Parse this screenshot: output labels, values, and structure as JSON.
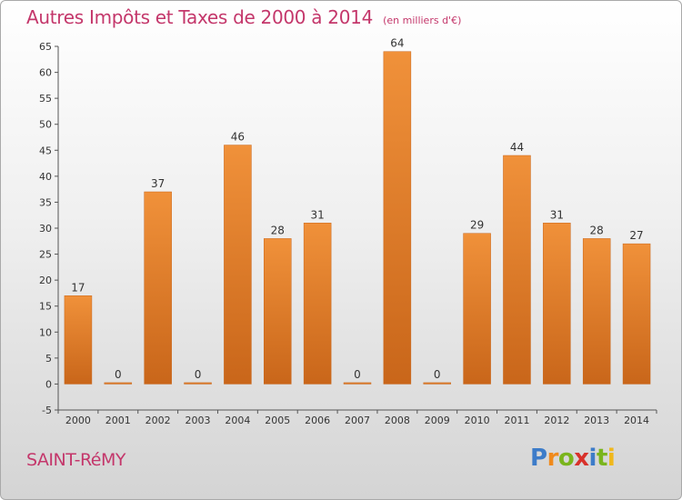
{
  "chart_data": {
    "type": "bar",
    "title": "Autres Impôts et Taxes de 2000 à 2014",
    "subtitle": "(en milliers d'€)",
    "categories": [
      "2000",
      "2001",
      "2002",
      "2003",
      "2004",
      "2005",
      "2006",
      "2007",
      "2008",
      "2009",
      "2010",
      "2011",
      "2012",
      "2013",
      "2014"
    ],
    "values": [
      17,
      0,
      37,
      0,
      46,
      28,
      31,
      0,
      64,
      0,
      29,
      44,
      31,
      28,
      27
    ],
    "ylim": [
      -5,
      65
    ],
    "yticks": [
      -5,
      0,
      5,
      10,
      15,
      20,
      25,
      30,
      35,
      40,
      45,
      50,
      55,
      60,
      65
    ],
    "grid": false,
    "bar_color": "#f0913a",
    "bar_color_dark": "#c9661a"
  },
  "place": "SAINT-RéMY",
  "logo": {
    "letters": [
      "P",
      "r",
      "o",
      "x",
      "i",
      "t",
      "i"
    ],
    "colors": [
      "#3d7cc9",
      "#f08a1c",
      "#7ab51d",
      "#d8312a",
      "#3d7cc9",
      "#7ab51d",
      "#f0b81c"
    ]
  }
}
